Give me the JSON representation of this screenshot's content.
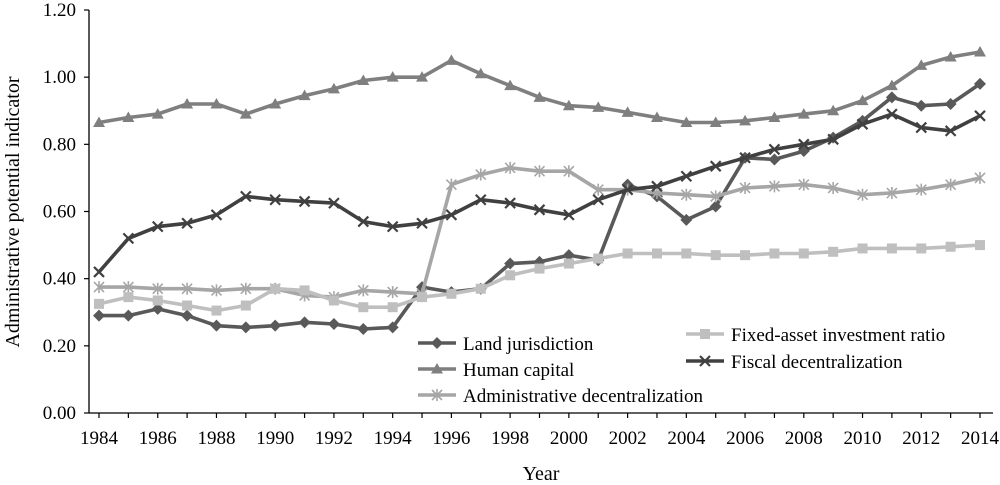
{
  "chart_data": {
    "type": "line",
    "title": "",
    "xlabel": "Year",
    "ylabel": "Administrative potential indicator",
    "xlim": [
      1984,
      2014
    ],
    "ylim": [
      0,
      1.2
    ],
    "x_ticks": [
      "1984",
      "1986",
      "1988",
      "1990",
      "1992",
      "1994",
      "1996",
      "1998",
      "2000",
      "2002",
      "2004",
      "2006",
      "2008",
      "2010",
      "2012",
      "2014"
    ],
    "y_ticks": [
      "0.00",
      "0.20",
      "0.40",
      "0.60",
      "0.80",
      "1.00",
      "1.20"
    ],
    "grid": false,
    "legend_position": "bottom-center",
    "x": [
      1984,
      1985,
      1986,
      1987,
      1988,
      1989,
      1990,
      1991,
      1992,
      1993,
      1994,
      1995,
      1996,
      1997,
      1998,
      1999,
      2000,
      2001,
      2002,
      2003,
      2004,
      2005,
      2006,
      2007,
      2008,
      2009,
      2010,
      2011,
      2012,
      2013,
      2014
    ],
    "series": [
      {
        "name": "Land jurisdiction",
        "marker": "diamond",
        "color": "#595959",
        "values": [
          0.29,
          0.29,
          0.31,
          0.29,
          0.26,
          0.255,
          0.26,
          0.27,
          0.265,
          0.25,
          0.255,
          0.375,
          0.36,
          0.37,
          0.445,
          0.45,
          0.47,
          0.455,
          0.68,
          0.645,
          0.575,
          0.615,
          0.76,
          0.755,
          0.78,
          0.82,
          0.87,
          0.94,
          0.915,
          0.92,
          0.98
        ]
      },
      {
        "name": "Human capital",
        "marker": "triangle",
        "color": "#7f7f7f",
        "values": [
          0.865,
          0.88,
          0.89,
          0.92,
          0.92,
          0.89,
          0.92,
          0.945,
          0.965,
          0.99,
          1.0,
          1.0,
          1.05,
          1.01,
          0.975,
          0.94,
          0.915,
          0.91,
          0.895,
          0.88,
          0.865,
          0.865,
          0.87,
          0.88,
          0.89,
          0.9,
          0.93,
          0.975,
          1.035,
          1.06,
          1.075
        ]
      },
      {
        "name": "Administrative decentralization",
        "marker": "star",
        "color": "#a6a6a6",
        "values": [
          0.375,
          0.375,
          0.37,
          0.37,
          0.365,
          0.37,
          0.37,
          0.35,
          0.345,
          0.365,
          0.36,
          0.355,
          0.68,
          0.71,
          0.73,
          0.72,
          0.72,
          0.665,
          0.665,
          0.655,
          0.65,
          0.645,
          0.67,
          0.675,
          0.68,
          0.67,
          0.65,
          0.655,
          0.665,
          0.68,
          0.7
        ]
      },
      {
        "name": "Fixed-asset investment ratio",
        "marker": "square",
        "color": "#bfbfbf",
        "values": [
          0.325,
          0.345,
          0.335,
          0.32,
          0.305,
          0.32,
          0.37,
          0.365,
          0.335,
          0.315,
          0.315,
          0.345,
          0.355,
          0.37,
          0.41,
          0.43,
          0.445,
          0.46,
          0.475,
          0.475,
          0.475,
          0.47,
          0.47,
          0.475,
          0.475,
          0.48,
          0.49,
          0.49,
          0.49,
          0.495,
          0.5
        ]
      },
      {
        "name": "Fiscal decentralization",
        "marker": "x",
        "color": "#404040",
        "values": [
          0.42,
          0.52,
          0.555,
          0.565,
          0.59,
          0.645,
          0.635,
          0.63,
          0.625,
          0.57,
          0.555,
          0.565,
          0.59,
          0.635,
          0.625,
          0.605,
          0.59,
          0.635,
          0.665,
          0.675,
          0.705,
          0.735,
          0.76,
          0.785,
          0.8,
          0.815,
          0.86,
          0.89,
          0.85,
          0.84,
          0.885
        ]
      }
    ]
  }
}
